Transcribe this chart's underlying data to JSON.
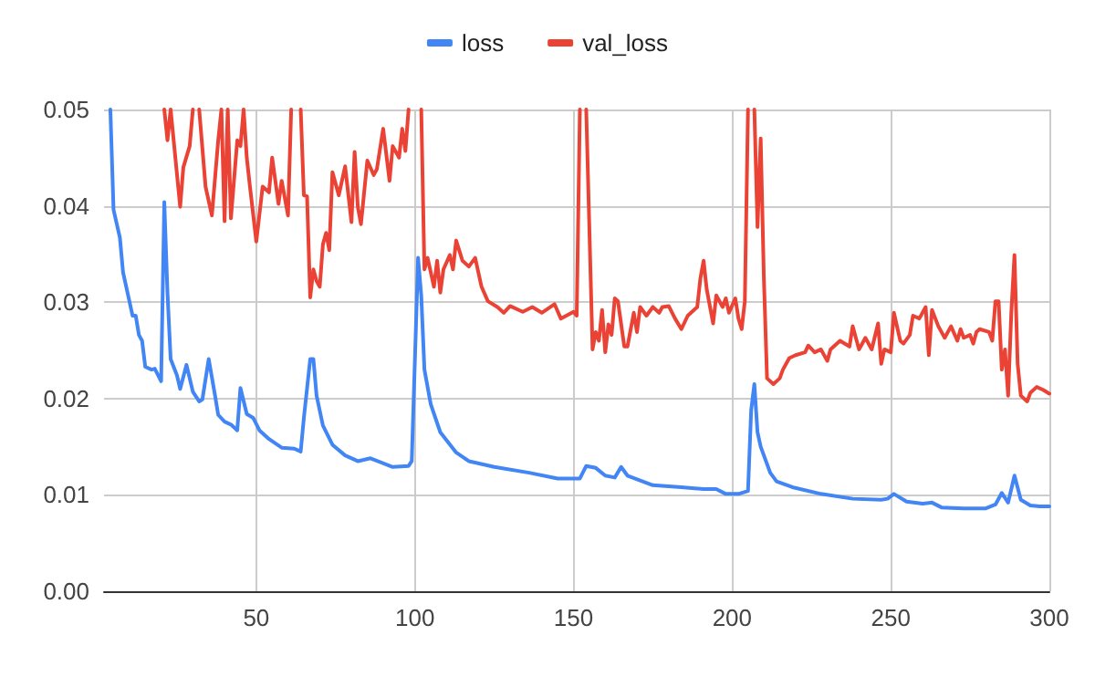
{
  "chart_data": {
    "type": "line",
    "xlim": [
      2,
      300
    ],
    "xticks": [
      50,
      100,
      150,
      200,
      250,
      300
    ],
    "ylim": [
      0,
      0.05
    ],
    "yticks": [
      {
        "value": 0,
        "label": "0.00"
      },
      0.01,
      0.02,
      0.03,
      0.04,
      0.05
    ],
    "grid": true,
    "legend": "top",
    "marker": "none",
    "line_style": "solid",
    "series": [
      {
        "name": "loss",
        "color": "#4285f4",
        "x": [
          4,
          5,
          7,
          8,
          10,
          11,
          12,
          13,
          14,
          15,
          17,
          18,
          20,
          21,
          22,
          23,
          25,
          26,
          28,
          30,
          32,
          33,
          35,
          37,
          38,
          40,
          42,
          44,
          45,
          47,
          49,
          51,
          54,
          58,
          62,
          64,
          65,
          67,
          68,
          69,
          71,
          74,
          78,
          82,
          86,
          93,
          98,
          99,
          101,
          102,
          103,
          105,
          108,
          113,
          117,
          125,
          136,
          145,
          152,
          154,
          157,
          160,
          163,
          165,
          167,
          175,
          184,
          191,
          195,
          198,
          202,
          205,
          206,
          207,
          208,
          209,
          212,
          214,
          219,
          228,
          238,
          247,
          249,
          251,
          255,
          260,
          263,
          266,
          273,
          280,
          283,
          285,
          287,
          289,
          291,
          294,
          297,
          300
        ],
        "values": [
          0.05,
          0.0396,
          0.0367,
          0.0331,
          0.0301,
          0.0286,
          0.0286,
          0.0266,
          0.026,
          0.0233,
          0.023,
          0.0231,
          0.0218,
          0.0404,
          0.031,
          0.0241,
          0.0224,
          0.021,
          0.0235,
          0.0207,
          0.0197,
          0.0199,
          0.0241,
          0.0203,
          0.0183,
          0.0176,
          0.0173,
          0.0167,
          0.0211,
          0.0184,
          0.018,
          0.0167,
          0.0158,
          0.0149,
          0.0148,
          0.0145,
          0.018,
          0.0241,
          0.0241,
          0.0203,
          0.0172,
          0.0152,
          0.0141,
          0.0135,
          0.0138,
          0.0129,
          0.013,
          0.0135,
          0.0346,
          0.0307,
          0.023,
          0.0194,
          0.0165,
          0.0144,
          0.0135,
          0.0129,
          0.0123,
          0.0117,
          0.0117,
          0.013,
          0.0128,
          0.012,
          0.0118,
          0.0129,
          0.012,
          0.011,
          0.0108,
          0.0106,
          0.0106,
          0.0101,
          0.0101,
          0.0104,
          0.0188,
          0.0215,
          0.0165,
          0.015,
          0.0123,
          0.0114,
          0.0108,
          0.0101,
          0.0096,
          0.0095,
          0.0096,
          0.0101,
          0.0093,
          0.0091,
          0.0092,
          0.0087,
          0.0086,
          0.0086,
          0.009,
          0.0102,
          0.0092,
          0.012,
          0.0095,
          0.0089,
          0.0088,
          0.0088
        ]
      },
      {
        "name": "val_loss",
        "color": "#ea4335",
        "x": [
          21,
          22,
          23,
          26,
          27,
          29,
          30,
          31,
          32,
          34,
          36,
          38,
          39,
          40,
          41,
          42,
          44,
          45,
          46,
          47,
          48,
          50,
          52,
          54,
          55,
          57,
          58,
          60,
          61,
          62,
          64,
          65,
          66,
          67,
          68,
          69,
          70,
          71,
          72,
          73,
          74,
          76,
          78,
          80,
          81,
          82,
          83,
          85,
          87,
          88,
          90,
          92,
          93,
          95,
          96,
          97,
          98,
          99,
          102,
          103,
          104,
          106,
          107,
          108,
          109,
          111,
          112,
          113,
          115,
          117,
          119,
          121,
          123,
          126,
          128,
          130,
          134,
          137,
          140,
          144,
          146,
          150,
          151,
          152,
          153,
          154,
          156,
          157,
          158,
          159,
          160,
          161,
          162,
          163,
          164,
          166,
          167,
          169,
          170,
          171,
          173,
          175,
          177,
          178,
          180,
          182,
          184,
          186,
          189,
          190,
          191,
          192,
          194,
          195,
          197,
          198,
          199,
          201,
          202,
          203,
          204,
          205,
          206,
          207,
          208,
          209,
          210,
          211,
          213,
          215,
          216,
          218,
          220,
          223,
          224,
          226,
          228,
          230,
          231,
          234,
          237,
          238,
          240,
          242,
          244,
          246,
          247,
          248,
          250,
          251,
          253,
          254,
          256,
          257,
          259,
          261,
          262,
          263,
          265,
          267,
          269,
          271,
          272,
          273,
          275,
          276,
          277,
          278,
          281,
          282,
          283,
          284,
          285,
          286,
          287,
          288,
          289,
          290,
          291,
          293,
          294,
          296,
          298,
          300
        ],
        "values": [
          0.05,
          0.0468,
          0.05,
          0.0399,
          0.044,
          0.0462,
          0.05,
          null,
          0.05,
          0.042,
          0.039,
          0.0468,
          0.05,
          0.0384,
          0.05,
          0.0387,
          0.0468,
          0.0462,
          0.05,
          0.045,
          0.042,
          0.0363,
          0.042,
          0.0414,
          0.045,
          0.0402,
          0.0426,
          0.039,
          0.05,
          null,
          0.05,
          0.0411,
          0.041,
          0.0305,
          0.0334,
          0.0322,
          0.0316,
          0.036,
          0.0372,
          0.0354,
          0.0435,
          0.0411,
          0.0441,
          0.0383,
          0.0456,
          0.0399,
          0.0381,
          0.0447,
          0.0432,
          0.0438,
          0.048,
          0.0426,
          0.0462,
          0.045,
          0.048,
          0.0457,
          0.05,
          null,
          0.05,
          0.0334,
          0.0346,
          0.0316,
          0.0343,
          0.031,
          0.0334,
          0.0349,
          0.0334,
          0.0364,
          0.0343,
          0.0337,
          0.0346,
          0.0316,
          0.0301,
          0.0295,
          0.0289,
          0.0296,
          0.029,
          0.0295,
          0.0289,
          0.0298,
          0.0283,
          0.029,
          0.0286,
          0.05,
          null,
          0.05,
          0.0251,
          0.0269,
          0.026,
          0.0292,
          0.0248,
          0.0277,
          0.0266,
          0.0304,
          0.0301,
          0.0254,
          0.0254,
          0.0289,
          0.0269,
          0.0295,
          0.0286,
          0.0295,
          0.0289,
          0.0295,
          0.0296,
          0.0283,
          0.0272,
          0.0286,
          0.0295,
          0.0325,
          0.0343,
          0.0313,
          0.0278,
          0.0307,
          0.0295,
          0.0304,
          0.0289,
          0.0304,
          0.0283,
          0.0272,
          0.0301,
          0.05,
          null,
          0.05,
          0.0378,
          0.047,
          0.0325,
          0.0221,
          0.0215,
          0.0221,
          0.023,
          0.0242,
          0.0245,
          0.0248,
          0.0255,
          0.0248,
          0.0251,
          0.0239,
          0.0251,
          0.026,
          0.0254,
          0.0275,
          0.0251,
          0.0263,
          0.0251,
          0.0278,
          0.0236,
          0.0251,
          0.0248,
          0.0289,
          0.026,
          0.0257,
          0.0266,
          0.0286,
          0.0283,
          0.0295,
          0.0245,
          0.0292,
          0.0275,
          0.0263,
          0.0275,
          0.026,
          0.0272,
          0.0263,
          0.0266,
          0.0257,
          0.0269,
          0.0272,
          0.0269,
          0.026,
          0.0301,
          0.0301,
          0.023,
          0.0251,
          0.0203,
          0.0289,
          0.0349,
          0.0236,
          0.0203,
          0.0197,
          0.0206,
          0.0212,
          0.0209,
          0.0205
        ]
      }
    ]
  }
}
